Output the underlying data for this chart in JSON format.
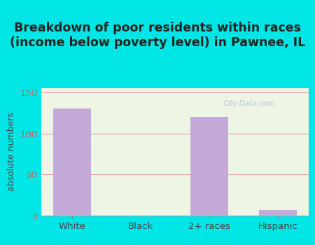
{
  "categories": [
    "White",
    "Black",
    "2+ races",
    "Hispanic"
  ],
  "values": [
    130,
    0,
    120,
    7
  ],
  "bar_color": "#c4aad8",
  "title": "Breakdown of poor residents within races\n(income below poverty level) in Pawnee, IL",
  "ylabel": "absolute numbers",
  "ylim": [
    0,
    155
  ],
  "yticks": [
    0,
    50,
    100,
    150
  ],
  "outer_bg": "#00e5e5",
  "inner_bg_color": "#eef5e4",
  "grid_color": "#e8a0a0",
  "ytick_color": "#cc6666",
  "title_fontsize": 12.5,
  "ylabel_fontsize": 9,
  "tick_fontsize": 9.5,
  "watermark": "City-Data.com",
  "bar_width": 0.55
}
